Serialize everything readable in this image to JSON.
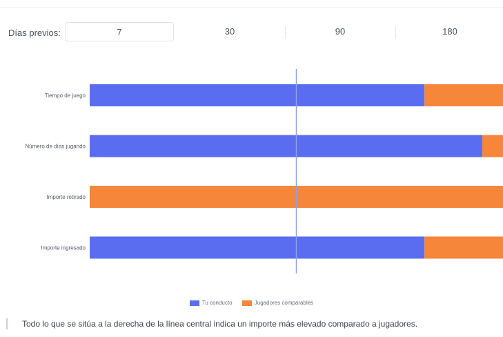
{
  "period_filter": {
    "label": "Días previos:",
    "options": [
      "7",
      "30",
      "90",
      "180"
    ],
    "selected": "7"
  },
  "chart_data": {
    "type": "bar",
    "orientation": "horizontal",
    "stacked": true,
    "categories": [
      "Tiempo de juego",
      "Número de días jugando",
      "Importe retirado",
      "Importe ingresado"
    ],
    "series": [
      {
        "name": "Tu conducto",
        "values": [
          81,
          95,
          0,
          81
        ]
      },
      {
        "name": "Jugadores comparables",
        "values": [
          19,
          5,
          100,
          19
        ]
      }
    ],
    "xlim": [
      0,
      100
    ],
    "reference_line": 50,
    "legend": "bottom-center",
    "colors": {
      "Tu conducto": "#5a6df0",
      "Jugadores comparables": "#f5863a",
      "reference_line": "#8ea2ee"
    }
  },
  "footer": {
    "note": "Todo lo que se sitúa a la derecha de la línea central indica un importe más elevado comparado a jugadores."
  }
}
